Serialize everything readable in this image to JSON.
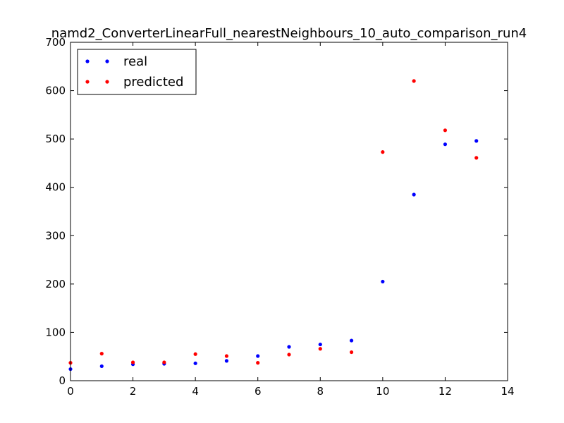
{
  "chart_data": {
    "type": "scatter",
    "title": "namd2_ConverterLinearFull_nearestNeighbours_10_auto_comparison_run4",
    "xlabel": "",
    "ylabel": "",
    "xlim": [
      0,
      14
    ],
    "ylim": [
      0,
      700
    ],
    "xticks": [
      0,
      2,
      4,
      6,
      8,
      10,
      12,
      14
    ],
    "yticks": [
      0,
      100,
      200,
      300,
      400,
      500,
      600,
      700
    ],
    "grid": false,
    "legend_position": "top-left",
    "x": [
      0,
      1,
      2,
      3,
      4,
      5,
      6,
      7,
      8,
      9,
      10,
      11,
      12,
      13
    ],
    "series": [
      {
        "name": "real",
        "color": "#0000ff",
        "values": [
          24,
          30,
          34,
          35,
          36,
          41,
          51,
          70,
          75,
          83,
          205,
          385,
          489,
          496
        ]
      },
      {
        "name": "predicted",
        "color": "#ff0000",
        "values": [
          37,
          56,
          38,
          38,
          55,
          51,
          37,
          54,
          66,
          59,
          473,
          620,
          518,
          461
        ]
      }
    ]
  }
}
